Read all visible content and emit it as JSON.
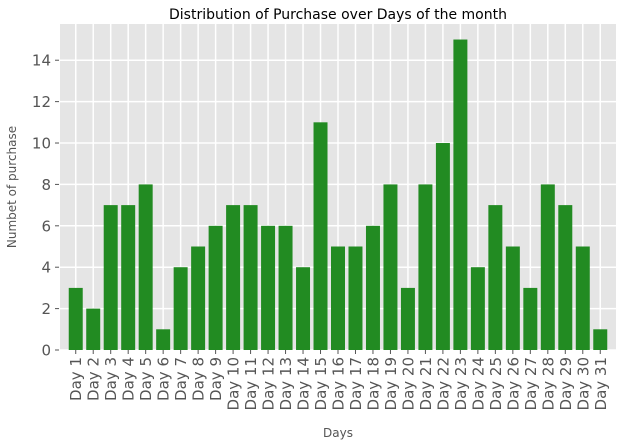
{
  "chart_data": {
    "type": "bar",
    "title": "Distribution of Purchase over Days of the month",
    "xlabel": "Days",
    "ylabel": "Numbet of purchase",
    "categories": [
      "Day 1",
      "Day 2",
      "Day 3",
      "Day 4",
      "Day 5",
      "Day 6",
      "Day 7",
      "Day 8",
      "Day 9",
      "Day 10",
      "Day 11",
      "Day 12",
      "Day 13",
      "Day 14",
      "Day 15",
      "Day 16",
      "Day 17",
      "Day 18",
      "Day 19",
      "Day 20",
      "Day 21",
      "Day 22",
      "Day 23",
      "Day 24",
      "Day 25",
      "Day 26",
      "Day 27",
      "Day 28",
      "Day 29",
      "Day 30",
      "Day 31"
    ],
    "values": [
      3,
      2,
      7,
      7,
      8,
      1,
      4,
      5,
      6,
      7,
      7,
      6,
      6,
      4,
      11,
      5,
      5,
      6,
      8,
      3,
      8,
      10,
      15,
      4,
      7,
      5,
      3,
      8,
      7,
      5,
      1
    ],
    "ylim": [
      0,
      15.75
    ],
    "yticks": [
      0,
      2,
      4,
      6,
      8,
      10,
      12,
      14
    ],
    "grid": true,
    "bar_color": "#228B22",
    "background_color": "#E5E5E5",
    "grid_color": "#FFFFFF"
  }
}
